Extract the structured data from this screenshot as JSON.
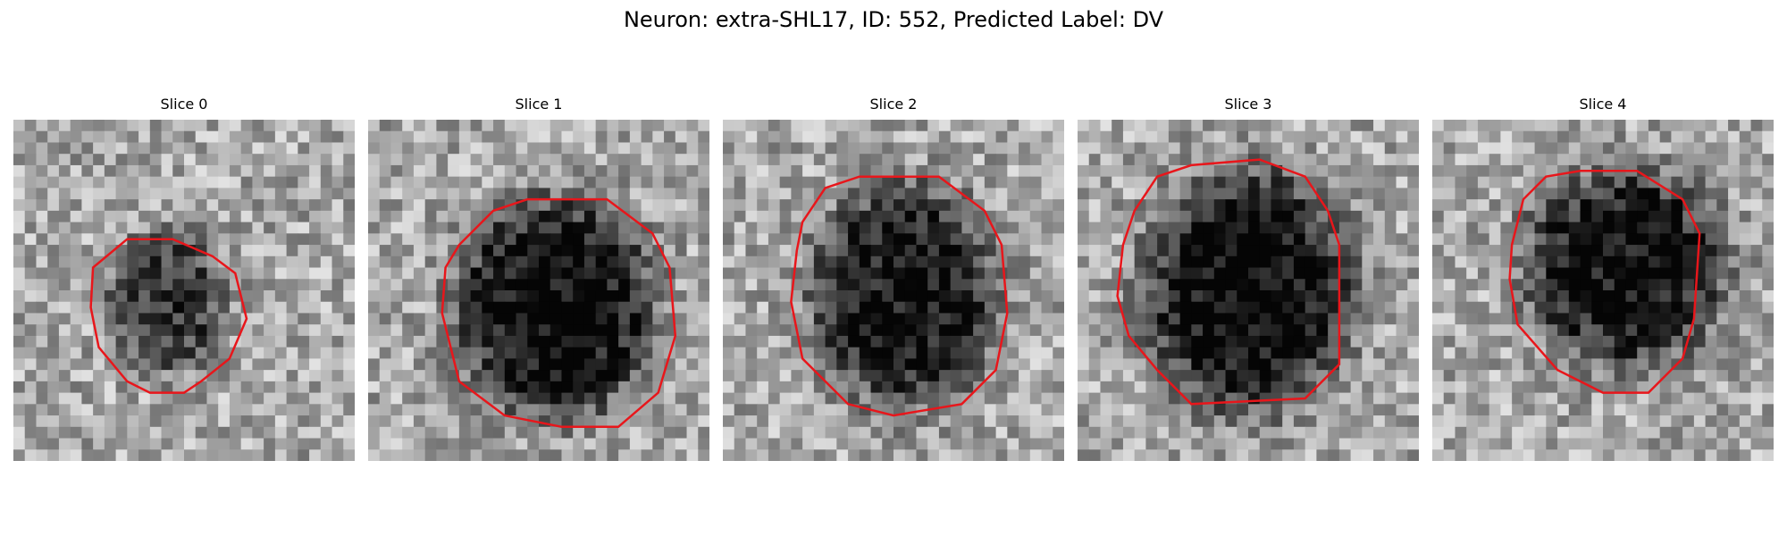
{
  "figure": {
    "title": "Neuron: extra-SHL17, ID: 552, Predicted Label: DV"
  },
  "slices": [
    {
      "label": "Slice 0"
    },
    {
      "label": "Slice 1"
    },
    {
      "label": "Slice 2"
    },
    {
      "label": "Slice 3"
    },
    {
      "label": "Slice 4"
    }
  ],
  "colors": {
    "background": "#ffffff",
    "contour": "#e8161b",
    "grayscale_map": "gray"
  }
}
